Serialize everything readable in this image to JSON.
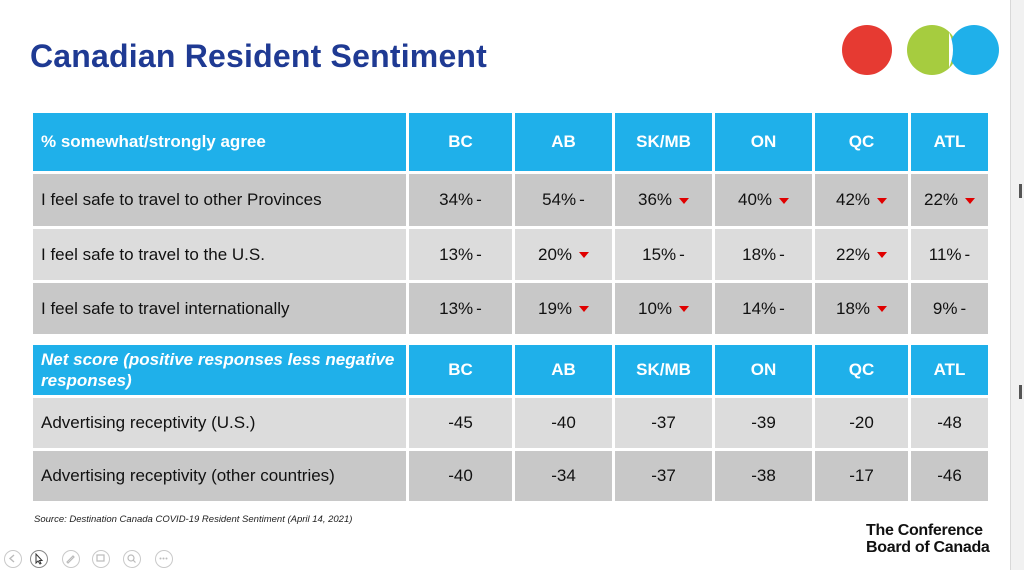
{
  "slide": {
    "title": "Canadian Resident Sentiment",
    "source": "Source: Destination Canada COVID-19 Resident Sentiment (April 14, 2021)",
    "logo_line1": "The Conference",
    "logo_line2": "Board of Canada",
    "colors": {
      "title": "#1f3a93",
      "header": "#1fb0ea",
      "down_arrow": "#e00000",
      "circle_red": "#e63a32",
      "circle_green": "#a6cc3f",
      "circle_blue": "#1fb0ea"
    }
  },
  "table1": {
    "header": [
      "% somewhat/strongly agree",
      "BC",
      "AB",
      "SK/MB",
      "ON",
      "QC",
      "ATL"
    ],
    "rows": [
      {
        "label": "I feel safe to travel to other Provinces",
        "cells": [
          {
            "v": "34%",
            "m": "-"
          },
          {
            "v": "54%",
            "m": "-"
          },
          {
            "v": "36%",
            "m": "down"
          },
          {
            "v": "40%",
            "m": "down"
          },
          {
            "v": "42%",
            "m": "down"
          },
          {
            "v": "22%",
            "m": "down"
          }
        ]
      },
      {
        "label": "I feel safe to travel to the U.S.",
        "cells": [
          {
            "v": "13%",
            "m": "-"
          },
          {
            "v": "20%",
            "m": "down"
          },
          {
            "v": "15%",
            "m": "-"
          },
          {
            "v": "18%",
            "m": "-"
          },
          {
            "v": "22%",
            "m": "down"
          },
          {
            "v": "11%",
            "m": "-"
          }
        ]
      },
      {
        "label": "I feel safe to travel internationally",
        "cells": [
          {
            "v": "13%",
            "m": "-"
          },
          {
            "v": "19%",
            "m": "down"
          },
          {
            "v": "10%",
            "m": "down"
          },
          {
            "v": "14%",
            "m": "-"
          },
          {
            "v": "18%",
            "m": "down"
          },
          {
            "v": "9%",
            "m": "-"
          }
        ]
      }
    ]
  },
  "table2": {
    "header": [
      "Net score (positive responses less negative responses)",
      "BC",
      "AB",
      "SK/MB",
      "ON",
      "QC",
      "ATL"
    ],
    "rows": [
      {
        "label": "Advertising receptivity (U.S.)",
        "cells": [
          "-45",
          "-40",
          "-37",
          "-39",
          "-20",
          "-48"
        ]
      },
      {
        "label": "Advertising receptivity (other countries)",
        "cells": [
          "-40",
          "-34",
          "-37",
          "-38",
          "-17",
          "-46"
        ]
      }
    ]
  },
  "toolbar": {
    "icons": [
      "prev-icon",
      "pointer-icon",
      "pen-icon",
      "slides-icon",
      "zoom-icon",
      "more-icon"
    ]
  }
}
